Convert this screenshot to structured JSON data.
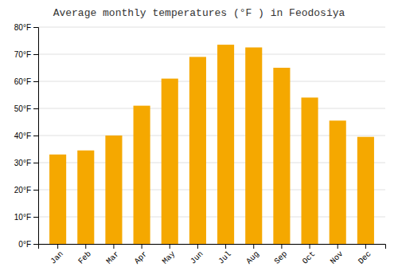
{
  "chart_data": {
    "type": "bar",
    "title": "Average monthly temperatures (°F ) in Feodosiya",
    "categories": [
      "Jan",
      "Feb",
      "Mar",
      "Apr",
      "May",
      "Jun",
      "Jul",
      "Aug",
      "Sep",
      "Oct",
      "Nov",
      "Dec"
    ],
    "values": [
      33,
      34.5,
      40,
      51,
      61,
      69,
      73.5,
      72.5,
      65,
      54,
      45.5,
      39.5
    ],
    "color": "#F5A800",
    "ylim": [
      0,
      80
    ],
    "yticks": [
      {
        "value": 0,
        "label": "0°F"
      },
      {
        "value": 10,
        "label": "10°F"
      },
      {
        "value": 20,
        "label": "20°F"
      },
      {
        "value": 30,
        "label": "30°F"
      },
      {
        "value": 40,
        "label": "40°F"
      },
      {
        "value": 50,
        "label": "50°F"
      },
      {
        "value": 60,
        "label": "60°F"
      },
      {
        "value": 70,
        "label": "70°F"
      },
      {
        "value": 80,
        "label": "80°F"
      }
    ],
    "grid": true
  }
}
